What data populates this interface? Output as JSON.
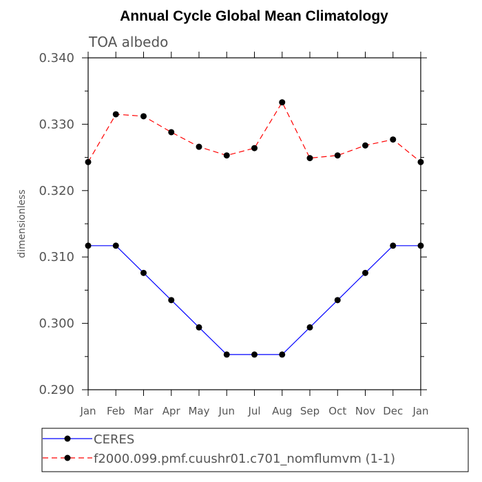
{
  "chart_data": {
    "type": "line",
    "title": "Annual Cycle Global Mean Climatology",
    "subtitle": "TOA albedo",
    "xlabel": "",
    "ylabel": "dimensionless",
    "ylim": [
      0.29,
      0.34
    ],
    "yticks": [
      "0.290",
      "0.300",
      "0.310",
      "0.320",
      "0.330",
      "0.340"
    ],
    "categories": [
      "Jan",
      "Feb",
      "Mar",
      "Apr",
      "May",
      "Jun",
      "Jul",
      "Aug",
      "Sep",
      "Oct",
      "Nov",
      "Dec",
      "Jan"
    ],
    "grid": false,
    "legend_position": "bottom",
    "series": [
      {
        "name": "CERES",
        "color": "#0000ff",
        "line_style": "solid",
        "marker": "filled-circle",
        "values": [
          0.3117,
          0.3117,
          0.3076,
          0.3035,
          0.2994,
          0.2953,
          0.2953,
          0.2953,
          0.2994,
          0.3035,
          0.3076,
          0.3117,
          0.3117
        ]
      },
      {
        "name": "f2000.099.pmf.cuushr01.c701_nomflumvm (1-1)",
        "color": "#ff0000",
        "line_style": "dashed",
        "marker": "filled-circle",
        "values": [
          0.3243,
          0.3315,
          0.3312,
          0.3288,
          0.3266,
          0.3253,
          0.3264,
          0.3333,
          0.3249,
          0.3253,
          0.3268,
          0.3277,
          0.3243
        ]
      }
    ]
  }
}
